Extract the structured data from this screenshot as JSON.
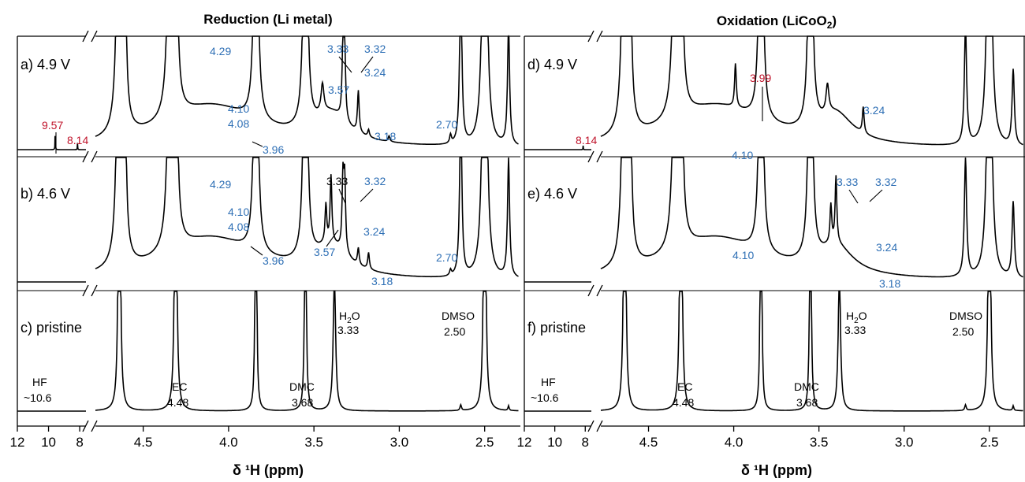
{
  "colors": {
    "black": "#000000",
    "blue": "#2e6fb5",
    "red": "#c0142b"
  },
  "panels_left_title": "Reduction (Li metal)",
  "panels_right_title_main": "Oxidation (LiCoO",
  "panels_right_title_sub": "2",
  "panels_right_title_end": ")",
  "xlabel_left": "δ ¹H (ppm)",
  "xlabel_right": "δ ¹H (ppm)",
  "chart_data": {
    "type": "line",
    "x_axis_segments": [
      {
        "range": [
          12,
          7.6
        ],
        "ticks": [
          12,
          10,
          8
        ],
        "tick_labels": [
          "12",
          "10",
          "8"
        ]
      },
      {
        "range": [
          4.78,
          2.3
        ],
        "ticks": [
          4.5,
          4.0,
          3.5,
          3.0,
          2.5
        ],
        "tick_labels": [
          "4.5",
          "4.0",
          "3.5",
          "3.0",
          "2.5"
        ]
      }
    ],
    "x_reversed": true,
    "axis_break": true,
    "panels": [
      {
        "label": "a) 4.9 V",
        "column": "Reduction (Li metal)",
        "peaks": [
          {
            "x": 9.57,
            "h": 0.33
          },
          {
            "x": 8.14,
            "h": 0.1
          },
          {
            "x": 3.33,
            "h": 1.5
          },
          {
            "x": 3.32,
            "h": 1.5
          },
          {
            "x": 3.24,
            "h": 0.88
          },
          {
            "x": 3.18,
            "h": 0.15
          },
          {
            "x": 3.06,
            "h": 0.12
          },
          {
            "x": 2.7,
            "h": 0.18
          },
          {
            "x": 2.64,
            "h": 1.5
          },
          {
            "x": 2.5,
            "h": 1.5
          },
          {
            "x": 2.36,
            "h": 0.95
          }
        ],
        "annotations": [
          {
            "text": "9.57",
            "color": "red"
          },
          {
            "text": "8.14",
            "color": "red"
          },
          {
            "text": "4.29",
            "color": "blue"
          },
          {
            "text": "4.10",
            "color": "blue"
          },
          {
            "text": "4.08",
            "color": "blue"
          },
          {
            "text": "3.96",
            "color": "blue"
          },
          {
            "text": "3.33",
            "color": "blue"
          },
          {
            "text": "3.32",
            "color": "blue"
          },
          {
            "text": "3.57",
            "color": "blue"
          },
          {
            "text": "3.24",
            "color": "blue"
          },
          {
            "text": "3.18",
            "color": "blue"
          },
          {
            "text": "2.70",
            "color": "blue"
          }
        ]
      },
      {
        "label": "b) 4.6 V",
        "column": "Reduction (Li metal)",
        "peaks": [
          {
            "x": 3.33,
            "h": 1.5
          },
          {
            "x": 3.32,
            "h": 1.5
          },
          {
            "x": 3.24,
            "h": 0.35
          },
          {
            "x": 3.18,
            "h": 0.35
          },
          {
            "x": 2.7,
            "h": 0.12
          },
          {
            "x": 2.64,
            "h": 1.5
          },
          {
            "x": 2.5,
            "h": 1.5
          },
          {
            "x": 2.36,
            "h": 0.92
          }
        ],
        "annotations": [
          {
            "text": "4.29",
            "color": "blue"
          },
          {
            "text": "4.10",
            "color": "blue"
          },
          {
            "text": "4.08",
            "color": "blue"
          },
          {
            "text": "3.96",
            "color": "blue"
          },
          {
            "text": "3.33",
            "color": "black"
          },
          {
            "text": "3.32",
            "color": "blue"
          },
          {
            "text": "3.57",
            "color": "blue"
          },
          {
            "text": "3.24",
            "color": "blue"
          },
          {
            "text": "3.18",
            "color": "blue"
          },
          {
            "text": "2.70",
            "color": "blue"
          }
        ]
      },
      {
        "label": "c) pristine",
        "column": "Reduction (Li metal)",
        "annotations": [
          {
            "text": "HF",
            "color": "black"
          },
          {
            "text": "~10.6",
            "color": "black"
          },
          {
            "text": "EC",
            "color": "black"
          },
          {
            "text": "4.48",
            "color": "black"
          },
          {
            "text": "DMC",
            "color": "black"
          },
          {
            "text": "3.68",
            "color": "black"
          },
          {
            "text": "H",
            "color": "black"
          },
          {
            "text": "2",
            "color": "black"
          },
          {
            "text": "O",
            "color": "black"
          },
          {
            "text": "3.33",
            "color": "black"
          },
          {
            "text": "DMSO",
            "color": "black"
          },
          {
            "text": "2.50",
            "color": "black"
          }
        ]
      },
      {
        "label": "d) 4.9 V",
        "column": "Oxidation (LiCoO2)",
        "peaks": [
          {
            "x": 8.14,
            "h": 0.06
          },
          {
            "x": 3.99,
            "h": 0.92
          },
          {
            "x": 3.24,
            "h": 0.55
          }
        ],
        "annotations": [
          {
            "text": "8.14",
            "color": "red"
          },
          {
            "text": "3.99",
            "color": "red"
          },
          {
            "text": "3.24",
            "color": "blue"
          },
          {
            "text": "4.10",
            "color": "blue"
          }
        ]
      },
      {
        "label": "e) 4.6 V",
        "column": "Oxidation (LiCoO2)",
        "annotations": [
          {
            "text": "3.33",
            "color": "blue"
          },
          {
            "text": "3.32",
            "color": "blue"
          },
          {
            "text": "4.10",
            "color": "blue"
          },
          {
            "text": "3.24",
            "color": "blue"
          },
          {
            "text": "3.18",
            "color": "blue"
          }
        ]
      },
      {
        "label": "f) pristine",
        "column": "Oxidation (LiCoO2)",
        "annotations": [
          {
            "text": "HF",
            "color": "black"
          },
          {
            "text": "~10.6",
            "color": "black"
          },
          {
            "text": "EC",
            "color": "black"
          },
          {
            "text": "4.48",
            "color": "black"
          },
          {
            "text": "DMC",
            "color": "black"
          },
          {
            "text": "3.68",
            "color": "black"
          },
          {
            "text": "H",
            "color": "black"
          },
          {
            "text": "2",
            "color": "black"
          },
          {
            "text": "O",
            "color": "black"
          },
          {
            "text": "3.33",
            "color": "black"
          },
          {
            "text": "DMSO",
            "color": "black"
          },
          {
            "text": "2.50",
            "color": "black"
          }
        ]
      }
    ]
  }
}
